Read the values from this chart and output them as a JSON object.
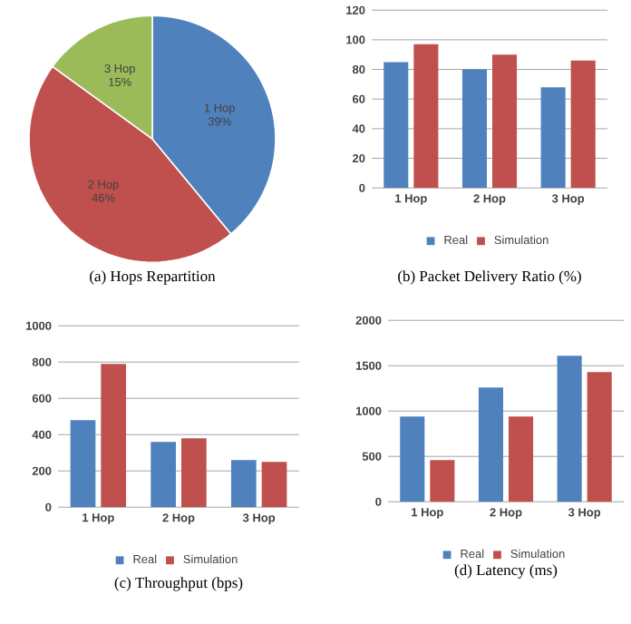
{
  "chart_data": [
    {
      "type": "pie",
      "title": "(a) Hops Repartition",
      "categories": [
        "1 Hop",
        "2 Hop",
        "3 Hop"
      ],
      "values": [
        39,
        46,
        15
      ],
      "value_labels": [
        "39%",
        "46%",
        "15%"
      ],
      "colors": [
        "#4f81bd",
        "#c0504d",
        "#9bbb59"
      ]
    },
    {
      "type": "bar",
      "title": "(b) Packet Delivery Ratio (%)",
      "categories": [
        "1 Hop",
        "2 Hop",
        "3 Hop"
      ],
      "series": [
        {
          "name": "Real",
          "color": "#4f81bd",
          "values": [
            85,
            80,
            68
          ]
        },
        {
          "name": "Simulation",
          "color": "#c0504d",
          "values": [
            97,
            90,
            86
          ]
        }
      ],
      "ylim": [
        0,
        120
      ],
      "yticks": [
        0,
        20,
        40,
        60,
        80,
        100,
        120
      ],
      "grid": "y",
      "legend": "bottom"
    },
    {
      "type": "bar",
      "title": "(c) Throughput (bps)",
      "categories": [
        "1 Hop",
        "2 Hop",
        "3 Hop"
      ],
      "series": [
        {
          "name": "Real",
          "color": "#4f81bd",
          "values": [
            480,
            360,
            260
          ]
        },
        {
          "name": "Simulation",
          "color": "#c0504d",
          "values": [
            790,
            380,
            250
          ]
        }
      ],
      "ylim": [
        0,
        1000
      ],
      "yticks": [
        0,
        200,
        400,
        600,
        800,
        1000
      ],
      "grid": "y",
      "legend": "bottom"
    },
    {
      "type": "bar",
      "title": "(d) Latency (ms)",
      "categories": [
        "1 Hop",
        "2 Hop",
        "3 Hop"
      ],
      "series": [
        {
          "name": "Real",
          "color": "#4f81bd",
          "values": [
            940,
            1260,
            1610
          ]
        },
        {
          "name": "Simulation",
          "color": "#c0504d",
          "values": [
            460,
            940,
            1430
          ]
        }
      ],
      "ylim": [
        0,
        2000
      ],
      "yticks": [
        0,
        500,
        1000,
        1500,
        2000
      ],
      "grid": "y",
      "legend": "bottom"
    }
  ]
}
